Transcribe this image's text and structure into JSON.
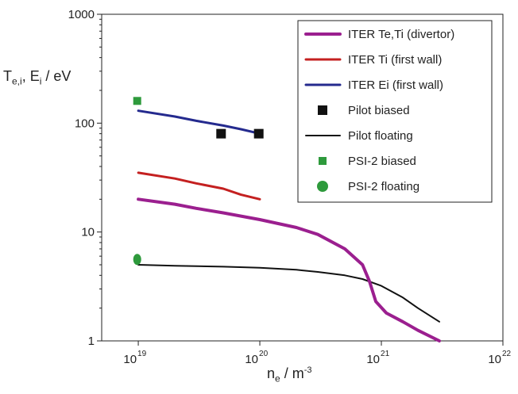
{
  "chart_data": {
    "type": "line",
    "ylabel": {
      "base": "T",
      "sub": "e,i",
      "middle": ", E",
      "sub2": "i",
      "unit": " / eV"
    },
    "xlabel": {
      "base": "n",
      "sub": "e",
      "unit": " / m",
      "sup": "-3"
    },
    "x_scale": "log",
    "y_scale": "log",
    "xlim": [
      5e+18,
      1e+22
    ],
    "ylim": [
      1,
      1000
    ],
    "x_ticks": [
      {
        "value": 1e+19,
        "base": "10",
        "exp": "19"
      },
      {
        "value": 1e+20,
        "base": "10",
        "exp": "20"
      },
      {
        "value": 1e+21,
        "base": "10",
        "exp": "21"
      },
      {
        "value": 1e+22,
        "base": "10",
        "exp": "22"
      }
    ],
    "y_ticks": [
      {
        "value": 1,
        "label": "1"
      },
      {
        "value": 10,
        "label": "10"
      },
      {
        "value": 100,
        "label": "100"
      },
      {
        "value": 1000,
        "label": "1000"
      }
    ],
    "grid": false,
    "legend_position": "top-right",
    "series": [
      {
        "name": "ITER Te,Ti (divertor)",
        "kind": "line",
        "color": "#9b1f8f",
        "width": 4,
        "x": [
          1e+19,
          2e+19,
          3e+19,
          5e+19,
          1e+20,
          2e+20,
          3e+20,
          5e+20,
          7e+20,
          8e+20,
          9e+20,
          1.1e+21,
          1.5e+21,
          2e+21,
          3e+21
        ],
        "y": [
          20,
          18,
          16.5,
          15,
          13,
          11,
          9.5,
          7,
          5,
          3.5,
          2.3,
          1.8,
          1.5,
          1.25,
          1.0
        ]
      },
      {
        "name": "ITER Ti (first wall)",
        "kind": "line",
        "color": "#c42020",
        "width": 3,
        "x": [
          1e+19,
          2e+19,
          3e+19,
          5e+19,
          7e+19,
          1e+20
        ],
        "y": [
          35,
          31,
          28,
          25,
          22,
          20
        ]
      },
      {
        "name": "ITER Ei (first wall)",
        "kind": "line",
        "color": "#242a8e",
        "width": 3,
        "x": [
          1e+19,
          2e+19,
          3e+19,
          5e+19,
          7e+19,
          1e+20
        ],
        "y": [
          130,
          115,
          105,
          95,
          88,
          80
        ]
      },
      {
        "name": "Pilot biased",
        "kind": "marker",
        "marker": "square",
        "color": "#111111",
        "x": [
          4.8e+19,
          9.8e+19
        ],
        "y": [
          80,
          80
        ]
      },
      {
        "name": "Pilot floating",
        "kind": "line",
        "color": "#111111",
        "width": 2,
        "x": [
          1e+19,
          2e+19,
          5e+19,
          1e+20,
          2e+20,
          3e+20,
          5e+20,
          7e+20,
          1e+21,
          1.5e+21,
          2e+21,
          3e+21
        ],
        "y": [
          5,
          4.9,
          4.8,
          4.7,
          4.5,
          4.3,
          4.0,
          3.7,
          3.2,
          2.5,
          2.0,
          1.5
        ]
      },
      {
        "name": "PSI-2 biased",
        "kind": "marker",
        "marker": "square-small",
        "color": "#2e9a3c",
        "x": [
          9.8e+18
        ],
        "y": [
          160
        ]
      },
      {
        "name": "PSI-2 floating",
        "kind": "marker",
        "marker": "circle",
        "color": "#2e9a3c",
        "x": [
          9.8e+18
        ],
        "y": [
          5.6
        ]
      }
    ]
  }
}
